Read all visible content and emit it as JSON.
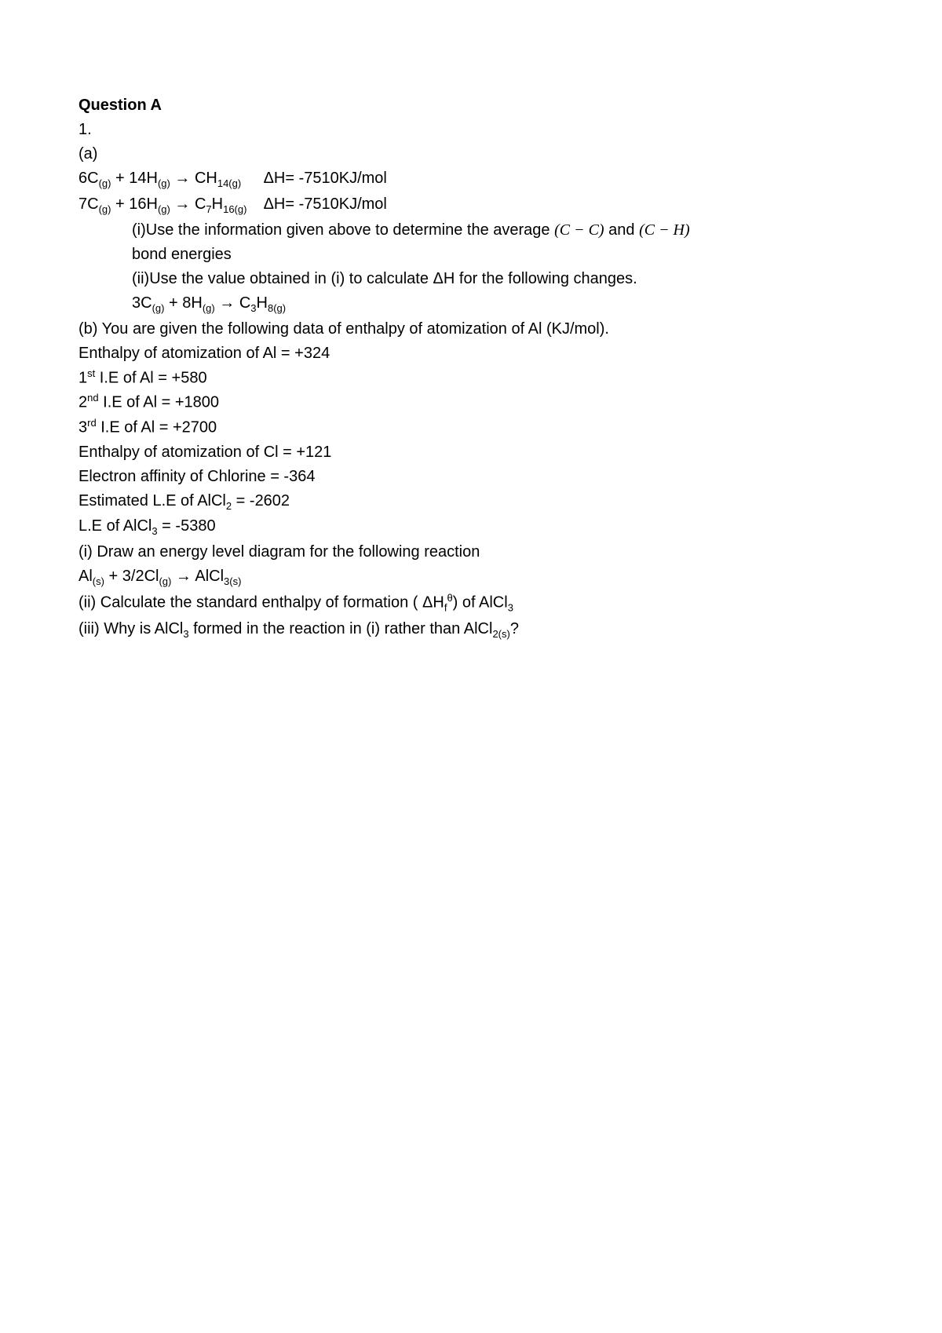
{
  "title": "Question A",
  "line1": "1.",
  "line2": " (a)",
  "eq1_left": " 6C",
  "eq1_sub1": "(g)",
  "eq1_mid1": " + 14H",
  "eq1_sub2": "(g)",
  "eq1_arrow": " → CH",
  "eq1_sub3": "14(g)",
  "eq1_dh": "ΔH= -7510KJ/mol",
  "eq2_left": "7C",
  "eq2_sub1": "(g)",
  "eq2_mid1": " + 16H",
  "eq2_sub2": "(g)",
  "eq2_arrow": " → C",
  "eq2_sub3a": "7",
  "eq2_mid2": "H",
  "eq2_sub3b": "16(g)",
  "eq2_dh": "ΔH= -7510KJ/mol",
  "a_i_1": "(i)Use the information given above to determine the average  ",
  "cc": "(C − C)",
  "a_i_and": " and  ",
  "ch": "(C − H)",
  "a_i_2": "bond energies",
  "a_ii": "(ii)Use the value obtained in (i) to calculate ΔH for the following changes.",
  "eq3_left": "3C",
  "eq3_sub1": "(g)",
  "eq3_mid1": " + 8H",
  "eq3_sub2": "(g)",
  "eq3_arrow": " → C",
  "eq3_sub3a": "3",
  "eq3_mid2": "H",
  "eq3_sub3b": "8(g)",
  "b_intro": "(b) You are given the following data of enthalpy of atomization of Al (KJ/mol).",
  "b1": "Enthalpy of atomization of Al  = +324",
  "b2_pre": "1",
  "b2_sup": "st",
  "b2_rest": " I.E of Al  =  +580",
  "b3_pre": "2",
  "b3_sup": "nd",
  "b3_rest": " I.E of Al  =  +1800",
  "b4_pre": "3",
  "b4_sup": "rd",
  "b4_rest": " I.E of Al  =  +2700",
  "b5": "Enthalpy of atomization of Cl = +121",
  "b6": "Electron affinity of Chlorine = -364",
  "b7_pre": "Estimated L.E of AlCl",
  "b7_sub": "2",
  "b7_rest": "  = -2602",
  "b8_pre": " L.E of AlCl",
  "b8_sub": "3",
  "b8_rest": "  = -5380",
  "bi": " (i) Draw an energy level diagram for the following reaction",
  "eq4_left": "Al",
  "eq4_sub1": "(s)",
  "eq4_mid1": " + 3/2Cl",
  "eq4_sub2": "(g)",
  "eq4_arrow": "  →   AlCl",
  "eq4_sub3": "3(s)",
  "bii_pre": "(ii) Calculate the standard enthalpy of formation ( ΔH",
  "bii_sub": "f",
  "bii_sup": "θ",
  "bii_mid": ") of AlCl",
  "bii_sub2": "3",
  "biii_pre": "(iii) Why is AlCl",
  "biii_sub1": "3",
  "biii_mid": " formed in the reaction in (i) rather than AlCl",
  "biii_sub2": "2(s)",
  "biii_end": "?"
}
